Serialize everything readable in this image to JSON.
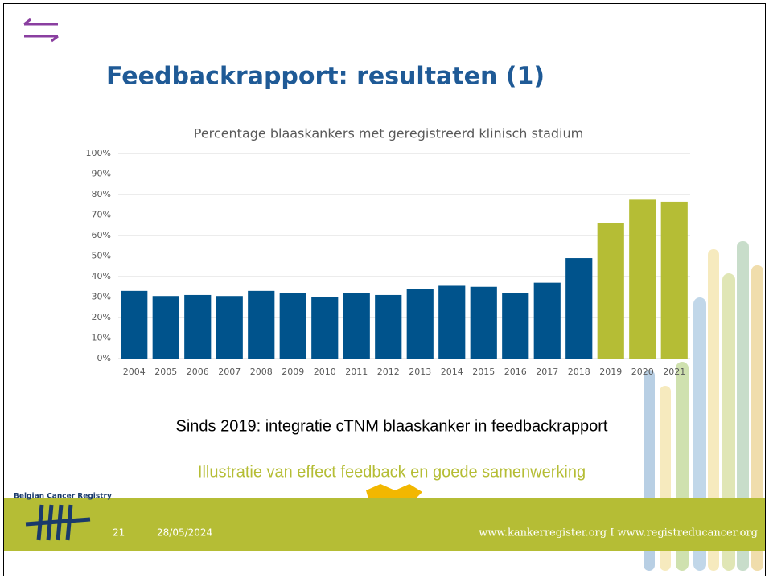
{
  "slide": {
    "title": "Feedbackrapport: resultaten (1)",
    "note": "Sinds 2019: integratie cTNM blaaskanker in feedbackrapport",
    "conclusion": "Illustratie van effect feedback en goede samenwerking",
    "logo_text": "Belgian Cancer Registry",
    "page_number": "21",
    "date": "28/05/2024",
    "website": "www.kankerregister.org I www.registreducancer.org"
  },
  "chart_data": {
    "type": "bar",
    "title": "Percentage blaaskankers met geregistreerd klinisch stadium",
    "categories": [
      "2004",
      "2005",
      "2006",
      "2007",
      "2008",
      "2009",
      "2010",
      "2011",
      "2012",
      "2013",
      "2014",
      "2015",
      "2016",
      "2017",
      "2018",
      "2019",
      "2020",
      "2021"
    ],
    "values": [
      33,
      30.5,
      31,
      30.5,
      33,
      32,
      30,
      32,
      31,
      34,
      35.5,
      35,
      32,
      37,
      49,
      66,
      77.5,
      76.5
    ],
    "colors": [
      "#00538c",
      "#00538c",
      "#00538c",
      "#00538c",
      "#00538c",
      "#00538c",
      "#00538c",
      "#00538c",
      "#00538c",
      "#00538c",
      "#00538c",
      "#00538c",
      "#00538c",
      "#00538c",
      "#00538c",
      "#b5bd35",
      "#b5bd35",
      "#b5bd35"
    ],
    "ylim": [
      0,
      100
    ],
    "yticks": [
      {
        "value": 0,
        "label": "0%"
      },
      {
        "value": 10,
        "label": "10%"
      },
      {
        "value": 20,
        "label": "20%"
      },
      {
        "value": 30,
        "label": "30%"
      },
      {
        "value": 40,
        "label": "40%"
      },
      {
        "value": 50,
        "label": "50%"
      },
      {
        "value": 60,
        "label": "60%"
      },
      {
        "value": 70,
        "label": "70%"
      },
      {
        "value": 80,
        "label": "80%"
      },
      {
        "value": 90,
        "label": "90%"
      },
      {
        "value": 100,
        "label": "100%"
      }
    ],
    "grid": true
  }
}
